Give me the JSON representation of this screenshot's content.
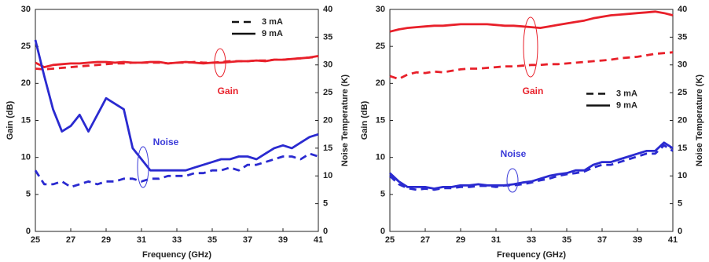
{
  "chart_data": [
    {
      "type": "line",
      "xlabel": "Frequency (GHz)",
      "ylabel": "Gain (dB)",
      "y2label": "Noise Temperature (K)",
      "xlim": [
        25,
        41
      ],
      "xticks": [
        25,
        27,
        29,
        31,
        33,
        35,
        37,
        39,
        41
      ],
      "ylim": [
        0,
        30
      ],
      "yticks": [
        0,
        5,
        10,
        15,
        20,
        25,
        30
      ],
      "y2lim": [
        0,
        40
      ],
      "y2ticks": [
        0,
        5,
        10,
        15,
        20,
        25,
        30,
        35,
        40
      ],
      "legend": "upper right",
      "annotations": [
        {
          "text": "Gain",
          "color": "#e8202a"
        },
        {
          "text": "Noise",
          "color": "#3a3ad8"
        }
      ],
      "x": [
        25,
        25.5,
        26,
        26.5,
        27,
        27.5,
        28,
        28.5,
        29,
        29.5,
        30,
        30.5,
        31,
        31.5,
        32,
        32.5,
        33,
        33.5,
        34,
        34.5,
        35,
        35.5,
        36,
        36.5,
        37,
        37.5,
        38,
        38.5,
        39,
        39.5,
        40,
        40.5,
        41
      ],
      "series": [
        {
          "name": "3 mA",
          "style": "dashed",
          "color": "#e8202a",
          "axis": "y",
          "values": [
            22,
            21.9,
            22,
            22.1,
            22.2,
            22.3,
            22.4,
            22.5,
            22.6,
            22.7,
            22.7,
            22.8,
            22.8,
            22.8,
            22.8,
            22.7,
            22.8,
            22.8,
            22.9,
            22.8,
            22.8,
            22.9,
            23,
            23,
            23,
            23.1,
            23.1,
            23.2,
            23.2,
            23.3,
            23.4,
            23.5,
            23.6
          ]
        },
        {
          "name": "9 mA",
          "style": "solid",
          "color": "#e8202a",
          "axis": "y",
          "values": [
            22.8,
            22.2,
            22.5,
            22.6,
            22.7,
            22.7,
            22.8,
            22.9,
            22.9,
            22.8,
            22.9,
            22.8,
            22.8,
            22.9,
            22.9,
            22.7,
            22.8,
            22.9,
            22.8,
            22.7,
            22.8,
            22.8,
            22.9,
            23,
            23,
            23.1,
            23,
            23.2,
            23.2,
            23.3,
            23.4,
            23.5,
            23.7
          ]
        },
        {
          "name": "3 mA",
          "style": "dashed",
          "color": "#2a2ad0",
          "axis": "y2",
          "values": [
            11,
            8.5,
            8.5,
            9,
            8,
            8.5,
            9,
            8.5,
            9,
            9,
            9.5,
            9.5,
            9,
            9.5,
            9.5,
            10,
            10,
            10,
            10.5,
            10.5,
            11,
            11,
            11.5,
            11,
            12,
            12,
            12.5,
            13,
            13.5,
            13.5,
            13,
            14,
            13.5
          ]
        },
        {
          "name": "9 mA",
          "style": "solid",
          "color": "#2a2ad0",
          "axis": "y2",
          "values": [
            34.5,
            28,
            22,
            18,
            19,
            21,
            18,
            21,
            24,
            23,
            22,
            15,
            13,
            11,
            11,
            11,
            11,
            11,
            11.5,
            12,
            12.5,
            13,
            13,
            13.5,
            13.5,
            13,
            14,
            15,
            15.5,
            15,
            16,
            17,
            17.5
          ]
        }
      ]
    },
    {
      "type": "line",
      "xlabel": "Frequency (GHz)",
      "ylabel": "Gain (dB)",
      "y2label": "Noise Temperature (K)",
      "xlim": [
        25,
        41
      ],
      "xticks": [
        25,
        27,
        29,
        31,
        33,
        35,
        37,
        39,
        41
      ],
      "ylim": [
        0,
        30
      ],
      "yticks": [
        0,
        5,
        10,
        15,
        20,
        25,
        30
      ],
      "y2lim": [
        0,
        40
      ],
      "y2ticks": [
        0,
        5,
        10,
        15,
        20,
        25,
        30,
        35,
        40
      ],
      "legend": "center right",
      "annotations": [
        {
          "text": "Gain",
          "color": "#e8202a"
        },
        {
          "text": "Noise",
          "color": "#3a3ad8"
        }
      ],
      "x": [
        25,
        25.5,
        26,
        26.5,
        27,
        27.5,
        28,
        28.5,
        29,
        29.5,
        30,
        30.5,
        31,
        31.5,
        32,
        32.5,
        33,
        33.5,
        34,
        34.5,
        35,
        35.5,
        36,
        36.5,
        37,
        37.5,
        38,
        38.5,
        39,
        39.5,
        40,
        40.5,
        41
      ],
      "series": [
        {
          "name": "3 mA",
          "style": "dashed",
          "color": "#e8202a",
          "axis": "y",
          "values": [
            21,
            20.6,
            21.2,
            21.5,
            21.4,
            21.6,
            21.5,
            21.7,
            21.9,
            22,
            22,
            22.1,
            22.2,
            22.3,
            22.3,
            22.4,
            22.5,
            22.5,
            22.6,
            22.6,
            22.7,
            22.8,
            22.9,
            23,
            23.1,
            23.2,
            23.4,
            23.5,
            23.6,
            23.8,
            24,
            24.1,
            24.2
          ]
        },
        {
          "name": "9 mA",
          "style": "solid",
          "color": "#e8202a",
          "axis": "y",
          "values": [
            27,
            27.3,
            27.5,
            27.6,
            27.7,
            27.8,
            27.8,
            27.9,
            28,
            28,
            28,
            28,
            27.9,
            27.8,
            27.8,
            27.7,
            27.6,
            27.5,
            27.7,
            27.9,
            28.1,
            28.3,
            28.5,
            28.8,
            29,
            29.2,
            29.3,
            29.4,
            29.5,
            29.6,
            29.7,
            29.5,
            29.2
          ]
        },
        {
          "name": "3 mA",
          "style": "dashed",
          "color": "#2a2ad0",
          "axis": "y2",
          "values": [
            10,
            8.5,
            7.8,
            7.5,
            7.7,
            7.5,
            7.8,
            7.8,
            8,
            8,
            8.2,
            8.2,
            8,
            8.3,
            8.3,
            8.5,
            8.8,
            9.2,
            9.5,
            10,
            10.3,
            10.5,
            10.8,
            11.5,
            12,
            12,
            12.5,
            13,
            13.5,
            14,
            14,
            15.5,
            14.5
          ]
        },
        {
          "name": "9 mA",
          "style": "solid",
          "color": "#2a2ad0",
          "axis": "y2",
          "values": [
            10.5,
            9,
            8,
            8,
            8,
            7.7,
            8,
            8,
            8.3,
            8.3,
            8.5,
            8.3,
            8.3,
            8.3,
            8.5,
            8.8,
            9,
            9.5,
            10,
            10.3,
            10.5,
            11,
            11,
            12,
            12.5,
            12.5,
            13,
            13.5,
            14,
            14.5,
            14.5,
            16,
            15
          ]
        }
      ]
    }
  ]
}
